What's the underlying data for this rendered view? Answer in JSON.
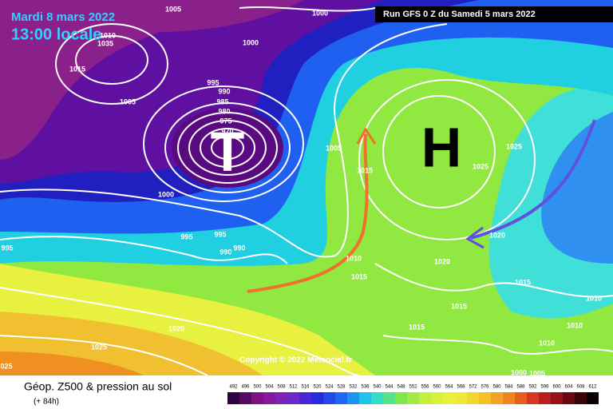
{
  "header": {
    "date": "Mardi 8 mars 2022",
    "time": "13:00 locale",
    "run": "Run GFS 0 Z du Samedi 5 mars 2022"
  },
  "map": {
    "low": "T",
    "high": "H",
    "copyright": "Copyright © 2022 Meteociel.fr",
    "isobar_labels": [
      "1005",
      "1000",
      "1010",
      "1035",
      "1000",
      "1015",
      "995",
      "990",
      "985",
      "1005",
      "980",
      "975",
      "970",
      "1005",
      "1015",
      "1025",
      "1025",
      "1000",
      "995",
      "995",
      "990",
      "990",
      "995",
      "1020",
      "1010",
      "1020",
      "1015",
      "1015",
      "1010",
      "1015",
      "1015",
      "1020",
      "1010",
      "1010",
      "1025",
      "025",
      "1000",
      "1005"
    ]
  },
  "legend": {
    "title": "Géop. Z500 & pression au sol",
    "lead": "(+ 84h)",
    "scale": [
      492,
      496,
      500,
      504,
      508,
      512,
      516,
      520,
      524,
      528,
      532,
      536,
      540,
      544,
      548,
      552,
      556,
      560,
      564,
      568,
      572,
      576,
      580,
      584,
      588,
      592,
      596,
      600,
      604,
      608,
      612
    ]
  }
}
